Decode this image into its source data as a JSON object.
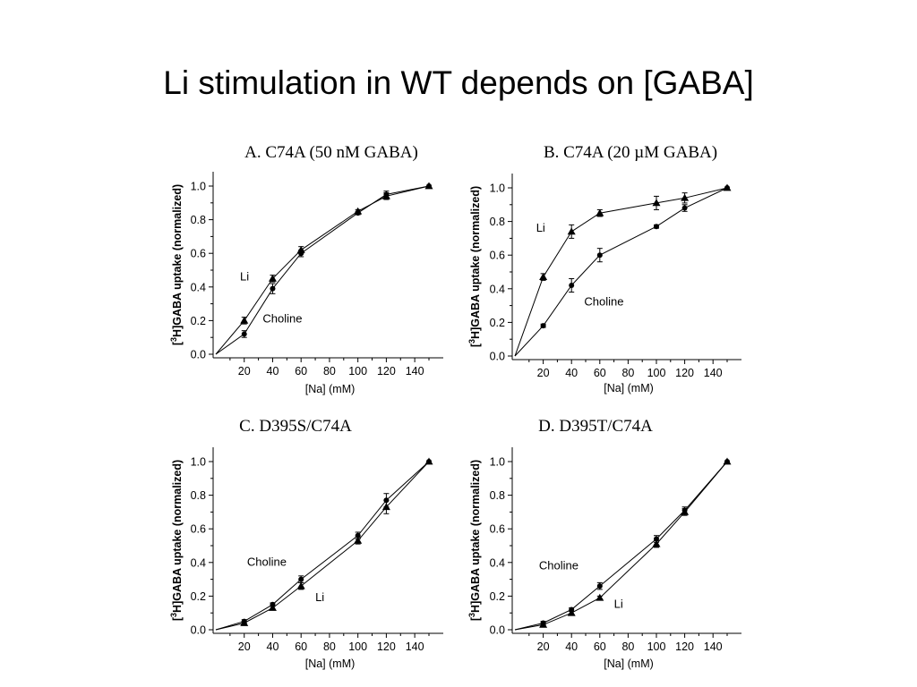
{
  "slide": {
    "title": "Li stimulation in WT depends on [GABA]"
  },
  "chart_data": [
    {
      "type": "line",
      "title": "A. C74A (50 nM GABA)",
      "xlabel": "[Na] (mM)",
      "ylabel": {
        "prefix": "[",
        "sup": "3",
        "rest": "H]GABA uptake (normalized)"
      },
      "xlim": [
        0,
        150
      ],
      "ylim": [
        0,
        1.0
      ],
      "xticks": [
        20,
        40,
        60,
        80,
        100,
        120,
        140
      ],
      "yticks": [
        "0.0",
        "0.2",
        "0.4",
        "0.6",
        "0.8",
        "1.0"
      ],
      "grid": false,
      "series": [
        {
          "name": "Li",
          "marker": "triangle",
          "x": [
            0,
            20,
            40,
            60,
            100,
            120,
            150
          ],
          "y": [
            0,
            0.2,
            0.45,
            0.62,
            0.85,
            0.94,
            1.0
          ],
          "err": [
            0,
            0.02,
            0.02,
            0.02,
            0.01,
            0.02,
            0
          ]
        },
        {
          "name": "Choline",
          "marker": "circle",
          "x": [
            0,
            20,
            40,
            60,
            100,
            120,
            150
          ],
          "y": [
            0,
            0.12,
            0.39,
            0.6,
            0.84,
            0.95,
            1.0
          ],
          "err": [
            0,
            0.02,
            0.03,
            0.02,
            0.01,
            0.02,
            0
          ]
        }
      ],
      "annotations": [
        {
          "text": "Li",
          "x": 17,
          "y": 0.44
        },
        {
          "text": "Choline",
          "x": 33,
          "y": 0.19
        }
      ]
    },
    {
      "type": "line",
      "title": "B. C74A (20 µM GABA)",
      "xlabel": "[Na] (mM)",
      "ylabel": {
        "prefix": "[",
        "sup": "3",
        "rest": "H]GABA uptake (normalized)"
      },
      "xlim": [
        0,
        150
      ],
      "ylim": [
        0,
        1.0
      ],
      "xticks": [
        20,
        40,
        60,
        80,
        100,
        120,
        140
      ],
      "yticks": [
        "0.0",
        "0.2",
        "0.4",
        "0.6",
        "0.8",
        "1.0"
      ],
      "grid": false,
      "series": [
        {
          "name": "Li",
          "marker": "triangle",
          "x": [
            0,
            20,
            40,
            60,
            100,
            120,
            150
          ],
          "y": [
            0,
            0.47,
            0.74,
            0.85,
            0.91,
            0.94,
            1.0
          ],
          "err": [
            0,
            0.02,
            0.04,
            0.02,
            0.04,
            0.03,
            0
          ]
        },
        {
          "name": "Choline",
          "marker": "circle",
          "x": [
            0,
            20,
            40,
            60,
            100,
            120,
            150
          ],
          "y": [
            0,
            0.18,
            0.42,
            0.6,
            0.77,
            0.88,
            1.0
          ],
          "err": [
            0,
            0.01,
            0.04,
            0.04,
            0.01,
            0.02,
            0
          ]
        }
      ],
      "annotations": [
        {
          "text": "Li",
          "x": 15,
          "y": 0.74
        },
        {
          "text": "Choline",
          "x": 49,
          "y": 0.3
        }
      ]
    },
    {
      "type": "line",
      "title": "C. D395S/C74A",
      "xlabel": "[Na] (mM)",
      "ylabel": {
        "prefix": "[",
        "sup": "3",
        "rest": "H]GABA uptake (normalized)"
      },
      "xlim": [
        0,
        150
      ],
      "ylim": [
        0,
        1.0
      ],
      "xticks": [
        20,
        40,
        60,
        80,
        100,
        120,
        140
      ],
      "yticks": [
        "0.0",
        "0.2",
        "0.4",
        "0.6",
        "0.8",
        "1.0"
      ],
      "grid": false,
      "series": [
        {
          "name": "Li",
          "marker": "triangle",
          "x": [
            0,
            20,
            40,
            60,
            100,
            120,
            150
          ],
          "y": [
            0,
            0.04,
            0.13,
            0.26,
            0.53,
            0.73,
            1.0
          ],
          "err": [
            0,
            0.01,
            0.01,
            0.02,
            0.02,
            0.04,
            0
          ]
        },
        {
          "name": "Choline",
          "marker": "circle",
          "x": [
            0,
            20,
            40,
            60,
            100,
            120,
            150
          ],
          "y": [
            0,
            0.05,
            0.15,
            0.3,
            0.56,
            0.77,
            1.0
          ],
          "err": [
            0,
            0.01,
            0.01,
            0.02,
            0.02,
            0.04,
            0
          ]
        }
      ],
      "annotations": [
        {
          "text": "Choline",
          "x": 22,
          "y": 0.38
        },
        {
          "text": "Li",
          "x": 70,
          "y": 0.17
        }
      ]
    },
    {
      "type": "line",
      "title": "D. D395T/C74A",
      "xlabel": "[Na] (mM)",
      "ylabel": {
        "prefix": "[",
        "sup": "3",
        "rest": "H]GABA uptake (normalized)"
      },
      "xlim": [
        0,
        150
      ],
      "ylim": [
        0,
        1.0
      ],
      "xticks": [
        20,
        40,
        60,
        80,
        100,
        120,
        140
      ],
      "yticks": [
        "0.0",
        "0.2",
        "0.4",
        "0.6",
        "0.8",
        "1.0"
      ],
      "grid": false,
      "series": [
        {
          "name": "Li",
          "marker": "triangle",
          "x": [
            0,
            20,
            40,
            60,
            100,
            120,
            150
          ],
          "y": [
            0,
            0.03,
            0.1,
            0.19,
            0.51,
            0.7,
            1.0
          ],
          "err": [
            0,
            0.01,
            0.01,
            0.01,
            0.02,
            0.02,
            0
          ]
        },
        {
          "name": "Choline",
          "marker": "circle",
          "x": [
            0,
            20,
            40,
            60,
            100,
            120,
            150
          ],
          "y": [
            0,
            0.04,
            0.12,
            0.26,
            0.54,
            0.71,
            1.0
          ],
          "err": [
            0,
            0.01,
            0.01,
            0.02,
            0.02,
            0.02,
            0
          ]
        }
      ],
      "annotations": [
        {
          "text": "Choline",
          "x": 17,
          "y": 0.36
        },
        {
          "text": "Li",
          "x": 70,
          "y": 0.13
        }
      ]
    }
  ]
}
